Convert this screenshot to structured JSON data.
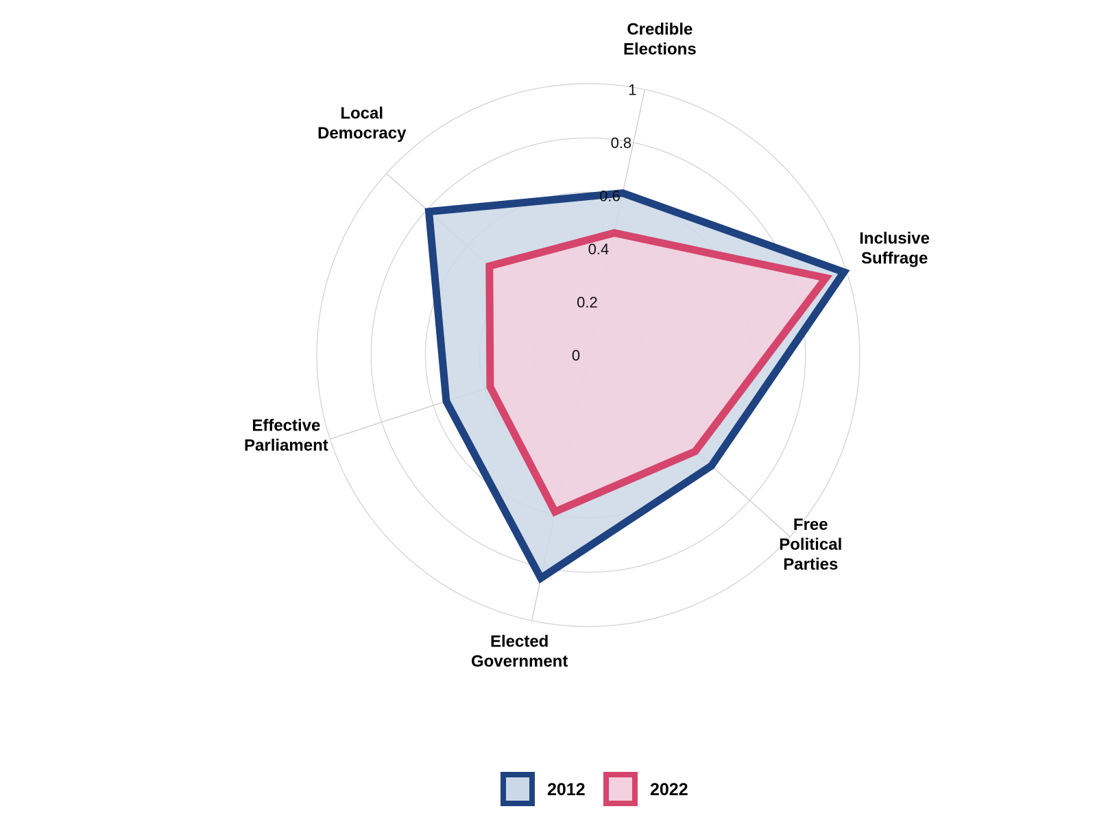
{
  "chart_data": {
    "type": "radar",
    "categories": [
      [
        "Credible",
        "Elections"
      ],
      [
        "Inclusive",
        "Suffrage"
      ],
      [
        "Free",
        "Political",
        "Parties"
      ],
      [
        "Elected",
        "Government"
      ],
      [
        "Effective",
        "Parliament"
      ],
      [
        "Local",
        "Democracy"
      ]
    ],
    "category_names": [
      "Credible Elections",
      "Inclusive Suffrage",
      "Free Political Parties",
      "Elected Government",
      "Effective Parliament",
      "Local Democracy"
    ],
    "rlim": [
      0,
      1
    ],
    "ticks": [
      "0",
      "0.2",
      "0.4",
      "0.6",
      "0.8",
      "1"
    ],
    "tick_values": [
      0,
      0.2,
      0.4,
      0.6,
      0.8,
      1
    ],
    "grid": true,
    "legend_position": "bottom",
    "series": [
      {
        "name": "2012",
        "values": [
          0.61,
          0.99,
          0.61,
          0.84,
          0.55,
          0.79
        ],
        "stroke": "#1f4281",
        "fill": "#cbd8e6"
      },
      {
        "name": "2022",
        "values": [
          0.46,
          0.92,
          0.53,
          0.59,
          0.38,
          0.49
        ],
        "stroke": "#d6456c",
        "fill": "#f3d1de"
      }
    ]
  }
}
